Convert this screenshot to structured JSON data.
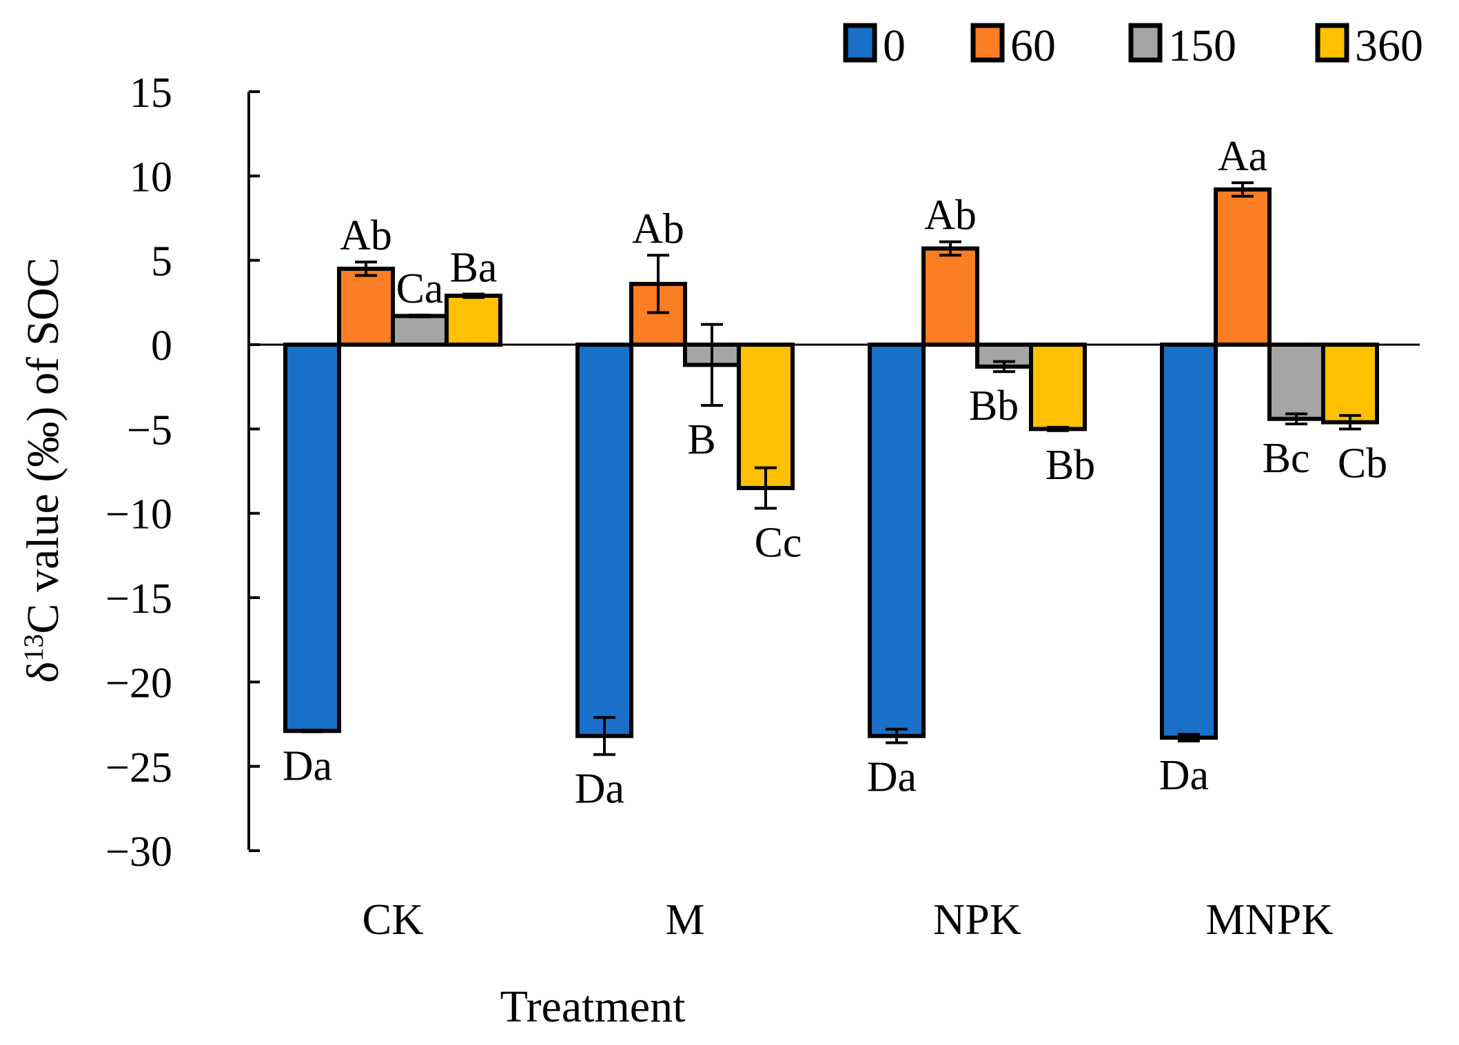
{
  "chart_data": {
    "type": "bar",
    "title": "",
    "xlabel": "Treatment",
    "ylabel_prefix": "δ",
    "ylabel_sup": "13",
    "ylabel_suffix": "C value (‰) of SOC",
    "ylim": [
      -30,
      15
    ],
    "yticks": [
      15,
      10,
      5,
      0,
      -5,
      -10,
      -15,
      -20,
      -25,
      -30
    ],
    "ytick_labels": [
      "15",
      "10",
      "5",
      "0",
      "−5",
      "−10",
      "−15",
      "−20",
      "−25",
      "−30"
    ],
    "categories": [
      "CK",
      "M",
      "NPK",
      "MNPK"
    ],
    "legend_position": "top-right",
    "series": [
      {
        "name": "0",
        "color": "#1A70C8",
        "values": [
          -22.9,
          -23.2,
          -23.2,
          -23.3
        ],
        "errors": [
          0.05,
          1.1,
          0.4,
          0.2
        ],
        "labels": [
          "Da",
          "Da",
          "Da",
          "Da"
        ]
      },
      {
        "name": "60",
        "color": "#FB7D24",
        "values": [
          4.5,
          3.6,
          5.7,
          9.2
        ],
        "errors": [
          0.4,
          1.7,
          0.4,
          0.4
        ],
        "labels": [
          "Ab",
          "Ab",
          "Ab",
          "Aa"
        ]
      },
      {
        "name": "150",
        "color": "#A5A5A5",
        "values": [
          1.7,
          -1.2,
          -1.3,
          -4.4
        ],
        "errors": [
          0.05,
          2.4,
          0.3,
          0.3
        ],
        "labels": [
          "Ca",
          "B",
          "Bb",
          "Bc"
        ]
      },
      {
        "name": "360",
        "color": "#FEC000",
        "values": [
          2.9,
          -8.5,
          -5.0,
          -4.6
        ],
        "errors": [
          0.1,
          1.2,
          0.1,
          0.4
        ],
        "labels": [
          "Ba",
          "Cc",
          "Bb",
          "Cb"
        ]
      }
    ]
  }
}
